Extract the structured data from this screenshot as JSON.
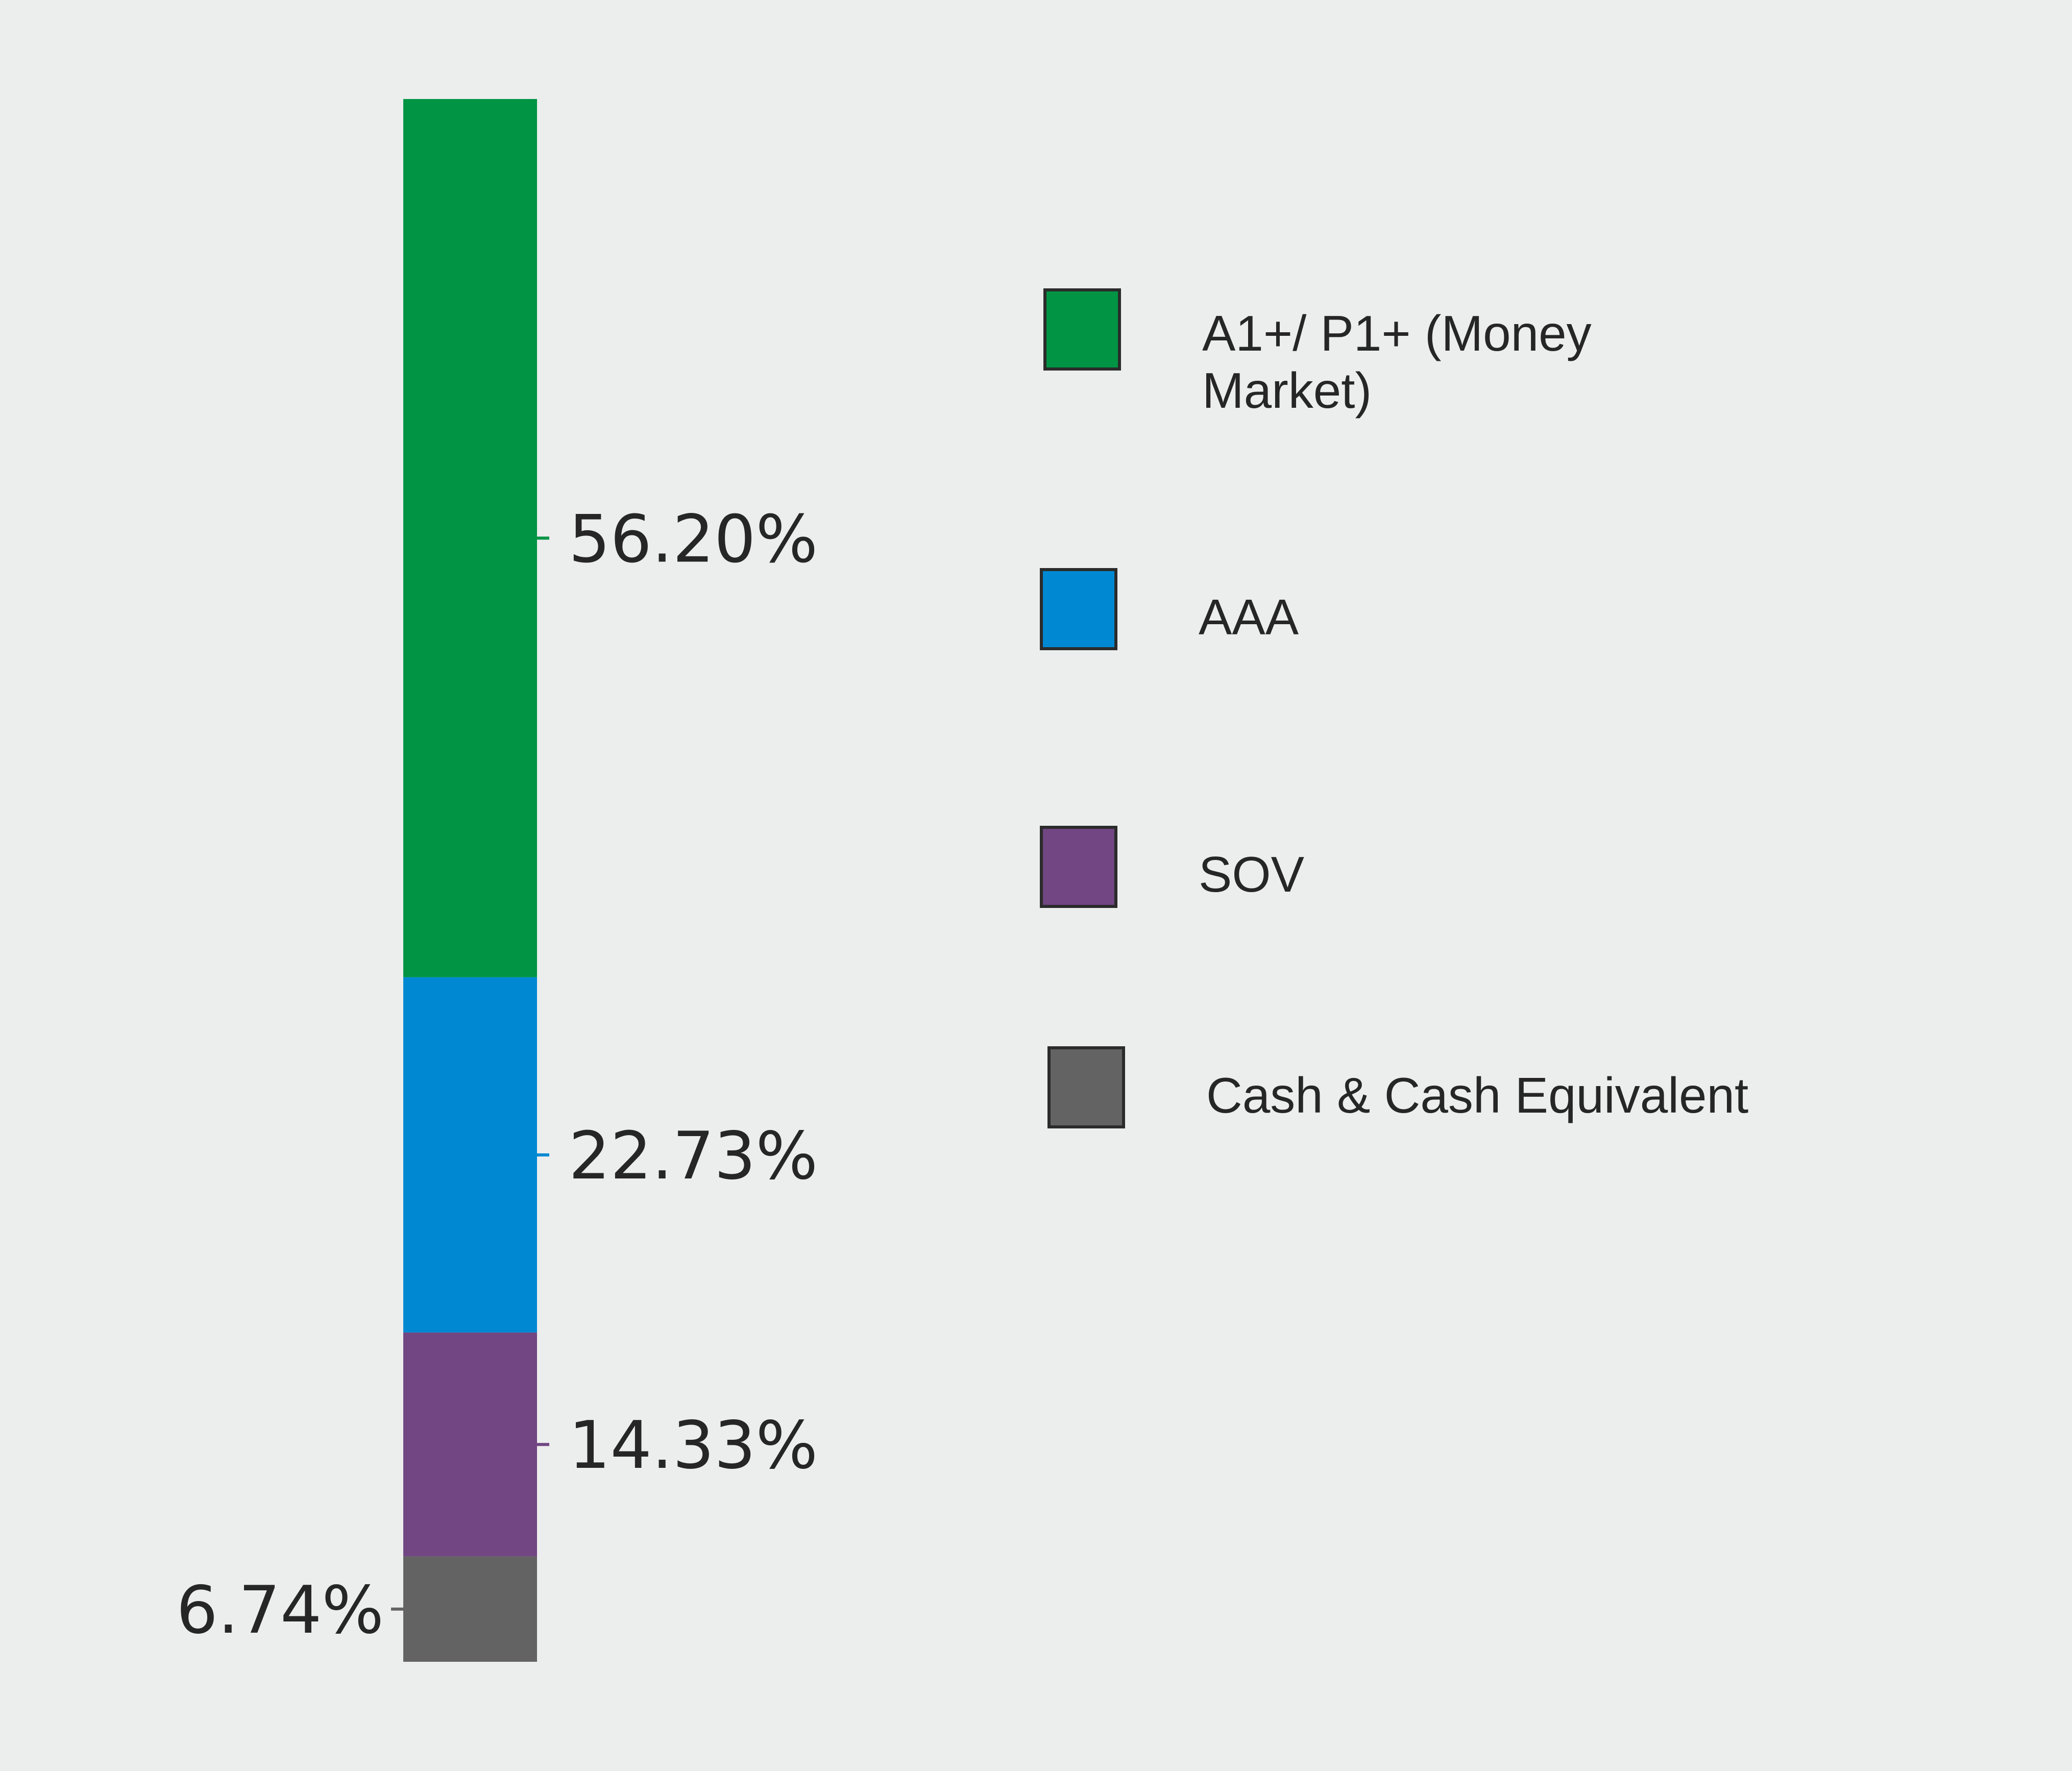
{
  "chart_data": {
    "type": "stacked-bar",
    "orientation": "vertical",
    "stacking": "single-column",
    "ylim": [
      0,
      100
    ],
    "grid": false,
    "legend_position": "right",
    "series": [
      {
        "name": "A1+/ P1+ (Money Market)",
        "value": 56.2,
        "label": "56.20%",
        "color": "#009444"
      },
      {
        "name": "AAA",
        "value": 22.73,
        "label": "22.73%",
        "color": "#0089d2"
      },
      {
        "name": "SOV",
        "value": 14.33,
        "label": "14.33%",
        "color": "#714682"
      },
      {
        "name": "Cash & Cash Equivalent",
        "value": 6.74,
        "label": "6.74%",
        "color": "#636363"
      }
    ]
  },
  "legend": {
    "items": [
      {
        "lines": [
          "A1+/ P1+ (Money",
          "Market)"
        ],
        "color": "#009444"
      },
      {
        "lines": [
          "AAA"
        ],
        "color": "#0089d2"
      },
      {
        "lines": [
          "SOV"
        ],
        "color": "#714682"
      },
      {
        "lines": [
          "Cash & Cash Equivalent"
        ],
        "color": "#636363"
      }
    ]
  },
  "colors": {
    "background": "#eceded",
    "text": "#262626",
    "swatch_border": "#2b2b2b"
  }
}
